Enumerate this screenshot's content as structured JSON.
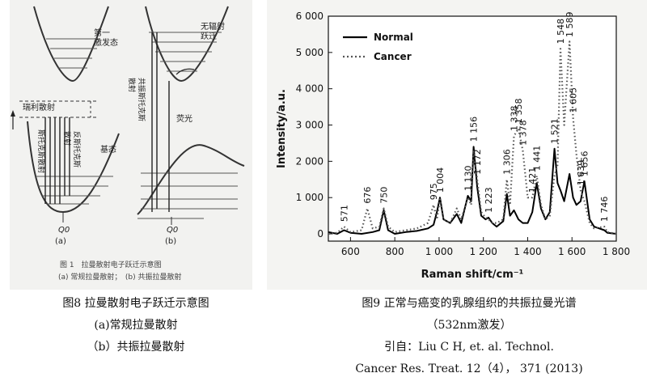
{
  "left_figure": {
    "label_first_excited": "第一\n激发态",
    "label_rayleigh": "瑞利散射",
    "label_stokes": "斯托克斯散射",
    "label_antistokes": "反斯托克斯\n散射",
    "label_ground": "基态",
    "label_nonradiative": "无辐射\n跃迁",
    "label_resonance": "共振斯托克斯\n散射",
    "label_fluorescence": "荧光",
    "q0": "Q0",
    "panel_a": "(a)",
    "panel_b": "(b)",
    "inner_caption_1": "图 1　拉曼散射电子跃迁示意图",
    "inner_caption_2": "(a) 常规拉曼散射；　(b) 共振拉曼散射"
  },
  "captions": {
    "left_line1": "图8  拉曼散射电子跃迁示意图",
    "left_line2": "(a)常规拉曼散射",
    "left_line3": "（b）共振拉曼散射",
    "right_line1": "图9 正常与癌变的乳腺组织的共振拉曼光谱",
    "right_line2": "（532nm激发）",
    "right_line3": "引自：Liu C H, et. al. Technol.",
    "right_line4": "Cancer Res. Treat. 12（4）， 371 (2013)"
  },
  "chart_data": {
    "type": "line",
    "xlabel": "Raman shift/cm⁻¹",
    "ylabel": "Intensity/a.u.",
    "xlim": [
      500,
      1800
    ],
    "ylim": [
      -200,
      6000
    ],
    "x_ticks": [
      600,
      800,
      1000,
      1200,
      1400,
      1600,
      1800
    ],
    "x_tick_labels": [
      "600",
      "800",
      "1 000",
      "1 200",
      "1 400",
      "1 600",
      "1 800"
    ],
    "y_ticks": [
      0,
      1000,
      2000,
      3000,
      4000,
      5000,
      6000
    ],
    "y_tick_labels": [
      "0",
      "1 000",
      "2 000",
      "3 000",
      "4 000",
      "5 000",
      "6 000"
    ],
    "legend": "top-left",
    "series": [
      {
        "name": "Normal",
        "style": "solid",
        "color": "#000000",
        "x": [
          500,
          540,
          571,
          600,
          650,
          700,
          730,
          750,
          770,
          800,
          850,
          900,
          950,
          975,
          990,
          1004,
          1020,
          1050,
          1080,
          1100,
          1130,
          1145,
          1156,
          1172,
          1190,
          1210,
          1223,
          1240,
          1260,
          1290,
          1306,
          1320,
          1338,
          1358,
          1378,
          1400,
          1421,
          1441,
          1460,
          1480,
          1500,
          1521,
          1535,
          1548,
          1565,
          1589,
          1605,
          1620,
          1639,
          1656,
          1680,
          1700,
          1746,
          1760,
          1800
        ],
        "y": [
          50,
          0,
          100,
          30,
          0,
          50,
          100,
          650,
          100,
          0,
          50,
          80,
          150,
          250,
          600,
          1000,
          400,
          300,
          550,
          300,
          1050,
          900,
          2400,
          1300,
          500,
          400,
          450,
          300,
          200,
          350,
          1100,
          500,
          650,
          400,
          300,
          300,
          600,
          1400,
          700,
          400,
          600,
          2350,
          1400,
          1200,
          900,
          1650,
          1000,
          800,
          900,
          1450,
          400,
          200,
          100,
          30,
          0
        ]
      },
      {
        "name": "Cancer",
        "style": "dotted",
        "color": "#555555",
        "x": [
          500,
          540,
          571,
          600,
          650,
          676,
          700,
          730,
          750,
          770,
          800,
          850,
          900,
          950,
          975,
          990,
          1004,
          1020,
          1050,
          1080,
          1100,
          1130,
          1145,
          1156,
          1172,
          1190,
          1210,
          1223,
          1240,
          1260,
          1290,
          1306,
          1320,
          1338,
          1358,
          1378,
          1400,
          1421,
          1441,
          1460,
          1480,
          1500,
          1521,
          1535,
          1548,
          1565,
          1589,
          1605,
          1620,
          1639,
          1656,
          1680,
          1700,
          1746,
          1760,
          1800
        ],
        "y": [
          0,
          30,
          200,
          50,
          100,
          700,
          150,
          200,
          700,
          200,
          50,
          100,
          150,
          300,
          800,
          400,
          950,
          400,
          300,
          700,
          400,
          1000,
          800,
          2300,
          1500,
          600,
          450,
          400,
          300,
          300,
          400,
          1500,
          800,
          2700,
          2900,
          2300,
          1000,
          1000,
          1600,
          800,
          400,
          500,
          1600,
          1900,
          5100,
          3000,
          5300,
          3200,
          2200,
          1200,
          900,
          300,
          150,
          200,
          50,
          0
        ]
      }
    ],
    "peak_labels": [
      "571",
      "676",
      "750",
      "975",
      "1 004",
      "1 130",
      "1 156",
      "1 172",
      "1 223",
      "1 306",
      "1 338",
      "1 358",
      "1 378",
      "1 421",
      "1 441",
      "1 521",
      "1 548",
      "1 589",
      "1 605",
      "1 639",
      "1 656",
      "1 746"
    ]
  }
}
